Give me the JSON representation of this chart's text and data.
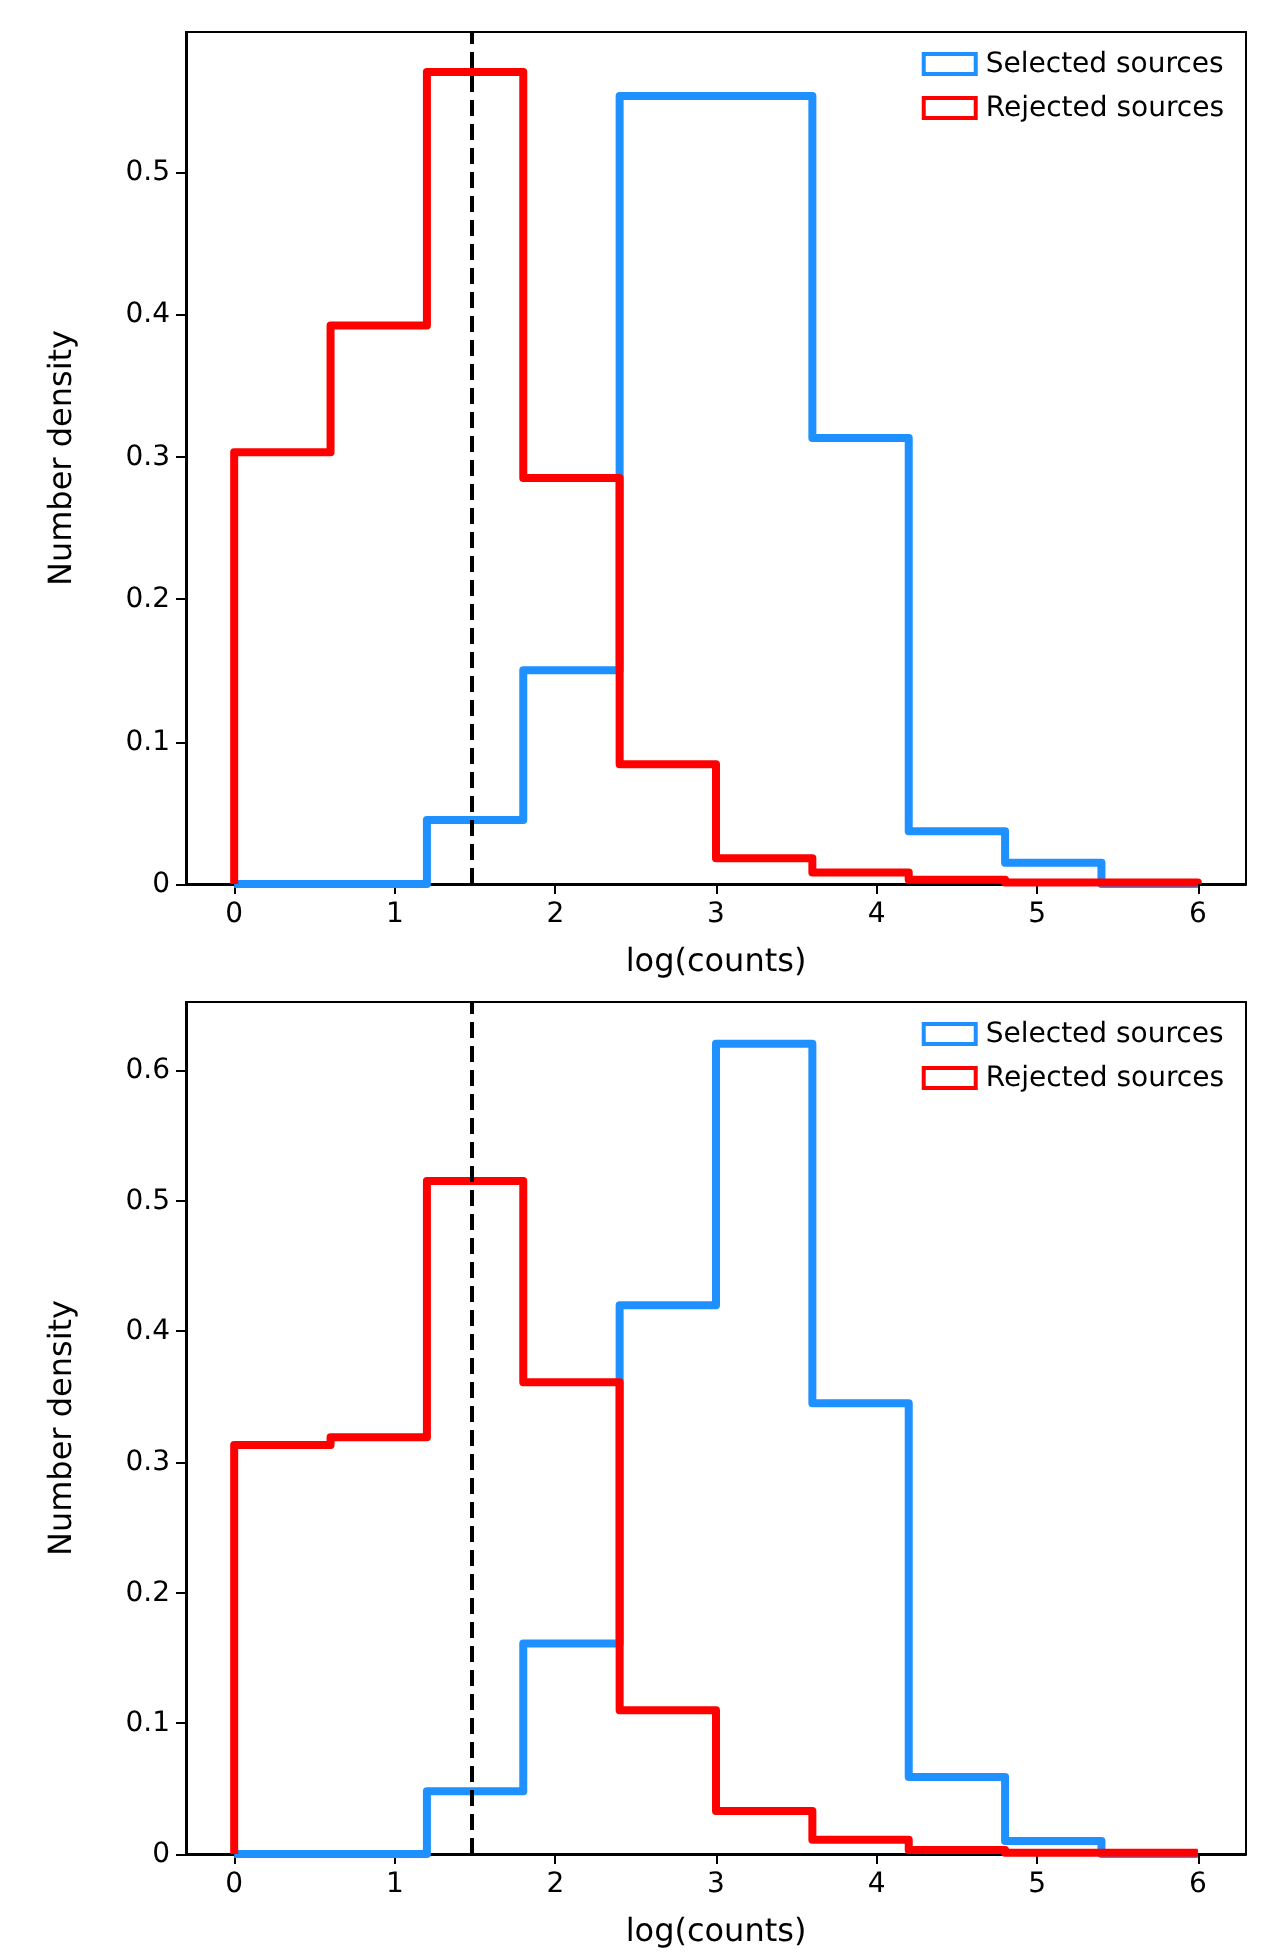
{
  "chart_data": [
    {
      "type": "histogram",
      "xlabel": "log(counts)",
      "ylabel": "Number density",
      "bins": [
        0,
        0.6,
        1.2,
        1.8,
        2.4,
        3.0,
        3.6,
        4.2,
        4.8,
        5.4,
        6.0
      ],
      "series": [
        {
          "name": "Selected sources",
          "color": "#1e90ff",
          "values": [
            0,
            0,
            0.045,
            0.15,
            0.553,
            0.553,
            0.313,
            0.037,
            0.015,
            0
          ]
        },
        {
          "name": "Rejected sources",
          "color": "#ff0000",
          "values": [
            0.303,
            0.392,
            0.57,
            0.285,
            0.084,
            0.018,
            0.008,
            0.003,
            0.001,
            0.001
          ]
        }
      ],
      "xlim": [
        -0.3,
        6.3
      ],
      "xticks": [
        0,
        1,
        2,
        3,
        4,
        5,
        6
      ],
      "ylim": [
        0,
        0.598
      ],
      "yticks": [
        0,
        0.1,
        0.2,
        0.3,
        0.4,
        0.5
      ],
      "ref_lines": [
        {
          "axis": "x",
          "value": 1.48,
          "color": "#000000",
          "line_style": "dashed"
        }
      ],
      "legend": "top right",
      "grid": false
    },
    {
      "type": "histogram",
      "xlabel": "log(counts)",
      "ylabel": "Number density",
      "bins": [
        0,
        0.6,
        1.2,
        1.8,
        2.4,
        3.0,
        3.6,
        4.2,
        4.8,
        5.4,
        6.0
      ],
      "series": [
        {
          "name": "Selected sources",
          "color": "#1e90ff",
          "values": [
            0,
            0,
            0.048,
            0.161,
            0.42,
            0.62,
            0.345,
            0.059,
            0.01,
            0
          ]
        },
        {
          "name": "Rejected sources",
          "color": "#ff0000",
          "values": [
            0.313,
            0.319,
            0.515,
            0.361,
            0.11,
            0.033,
            0.011,
            0.003,
            0.001,
            0.001
          ]
        }
      ],
      "xlim": [
        -0.3,
        6.3
      ],
      "xticks": [
        0,
        1,
        2,
        3,
        4,
        5,
        6
      ],
      "ylim": [
        0,
        0.652
      ],
      "yticks": [
        0,
        0.1,
        0.2,
        0.3,
        0.4,
        0.5,
        0.6
      ],
      "ref_lines": [
        {
          "axis": "x",
          "value": 1.48,
          "color": "#000000",
          "line_style": "dashed"
        }
      ],
      "legend": "top right",
      "grid": false
    }
  ]
}
